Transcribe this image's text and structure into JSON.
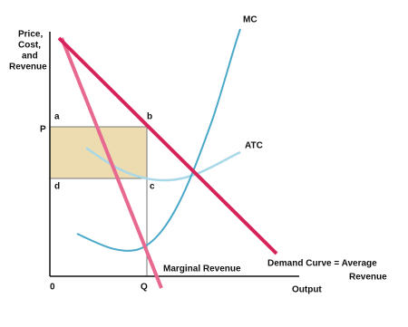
{
  "y_axis_label": [
    "Price,",
    "Cost,",
    "and",
    "Revenue"
  ],
  "x_axis_label": "Output",
  "origin_label": "0",
  "price_label": "P",
  "quantity_label": "Q",
  "points": {
    "a": "a",
    "b": "b",
    "c": "c",
    "d": "d"
  },
  "curves": {
    "mc": "MC",
    "atc": "ATC",
    "marginal_revenue": "Marginal Revenue",
    "demand": [
      "Demand Curve = Average",
      "Revenue"
    ]
  }
}
